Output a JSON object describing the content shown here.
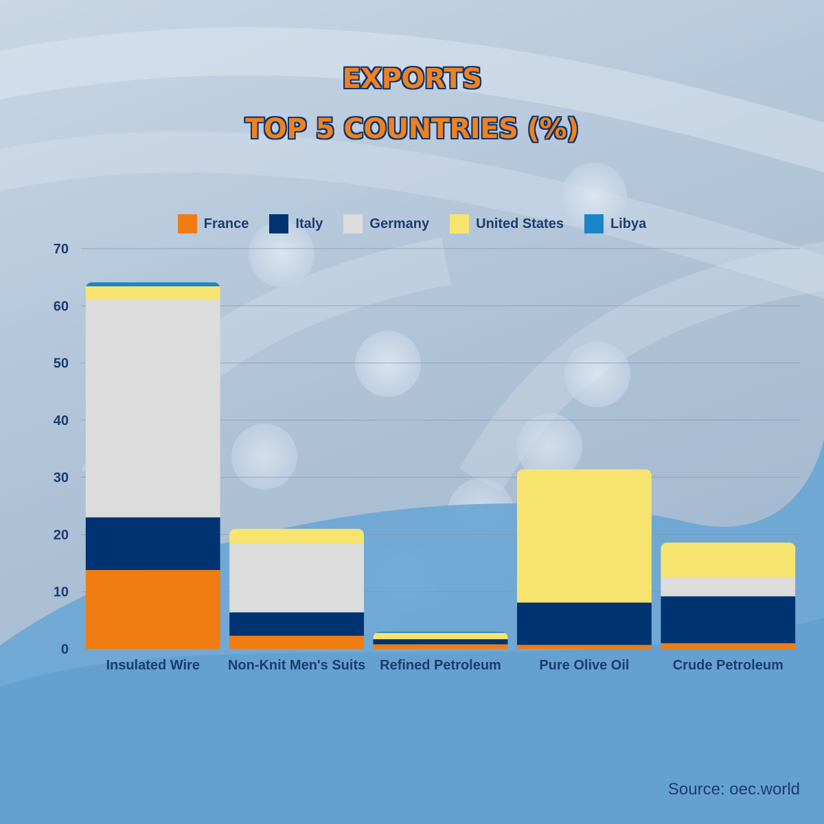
{
  "title": {
    "line1": "EXPORTS",
    "line2": "TOP 5 COUNTRIES (%)"
  },
  "source": "Source: oec.world",
  "colors": {
    "France": "#ef7d12",
    "Italy": "#003371",
    "Germany": "#dcdcdc",
    "United States": "#f7e46f",
    "Libya": "#1a86c8",
    "text": "#1b3d6d",
    "gridline": "#7f96b5"
  },
  "chart_data": {
    "type": "bar",
    "stacked": true,
    "title": "EXPORTS TOP 5 COUNTRIES (%)",
    "categories": [
      "Insulated Wire",
      "Non-Knit Men's Suits",
      "Refined Petroleum",
      "Pure Olive Oil",
      "Crude Petroleum"
    ],
    "series": [
      {
        "name": "France",
        "values": [
          13.8,
          2.3,
          0.8,
          0.7,
          1.0
        ]
      },
      {
        "name": "Italy",
        "values": [
          9.2,
          4.1,
          0.9,
          7.4,
          8.2
        ]
      },
      {
        "name": "Germany",
        "values": [
          38.0,
          12.1,
          0.0,
          0.0,
          3.3
        ]
      },
      {
        "name": "United States",
        "values": [
          2.4,
          2.5,
          1.1,
          23.3,
          6.1
        ]
      },
      {
        "name": "Libya",
        "values": [
          0.7,
          0.0,
          0.2,
          0.0,
          0.0
        ]
      }
    ],
    "yticks": [
      0,
      10,
      20,
      30,
      40,
      50,
      60,
      70
    ],
    "ylim": [
      0,
      70
    ],
    "grid": true,
    "legend": "top-center"
  }
}
